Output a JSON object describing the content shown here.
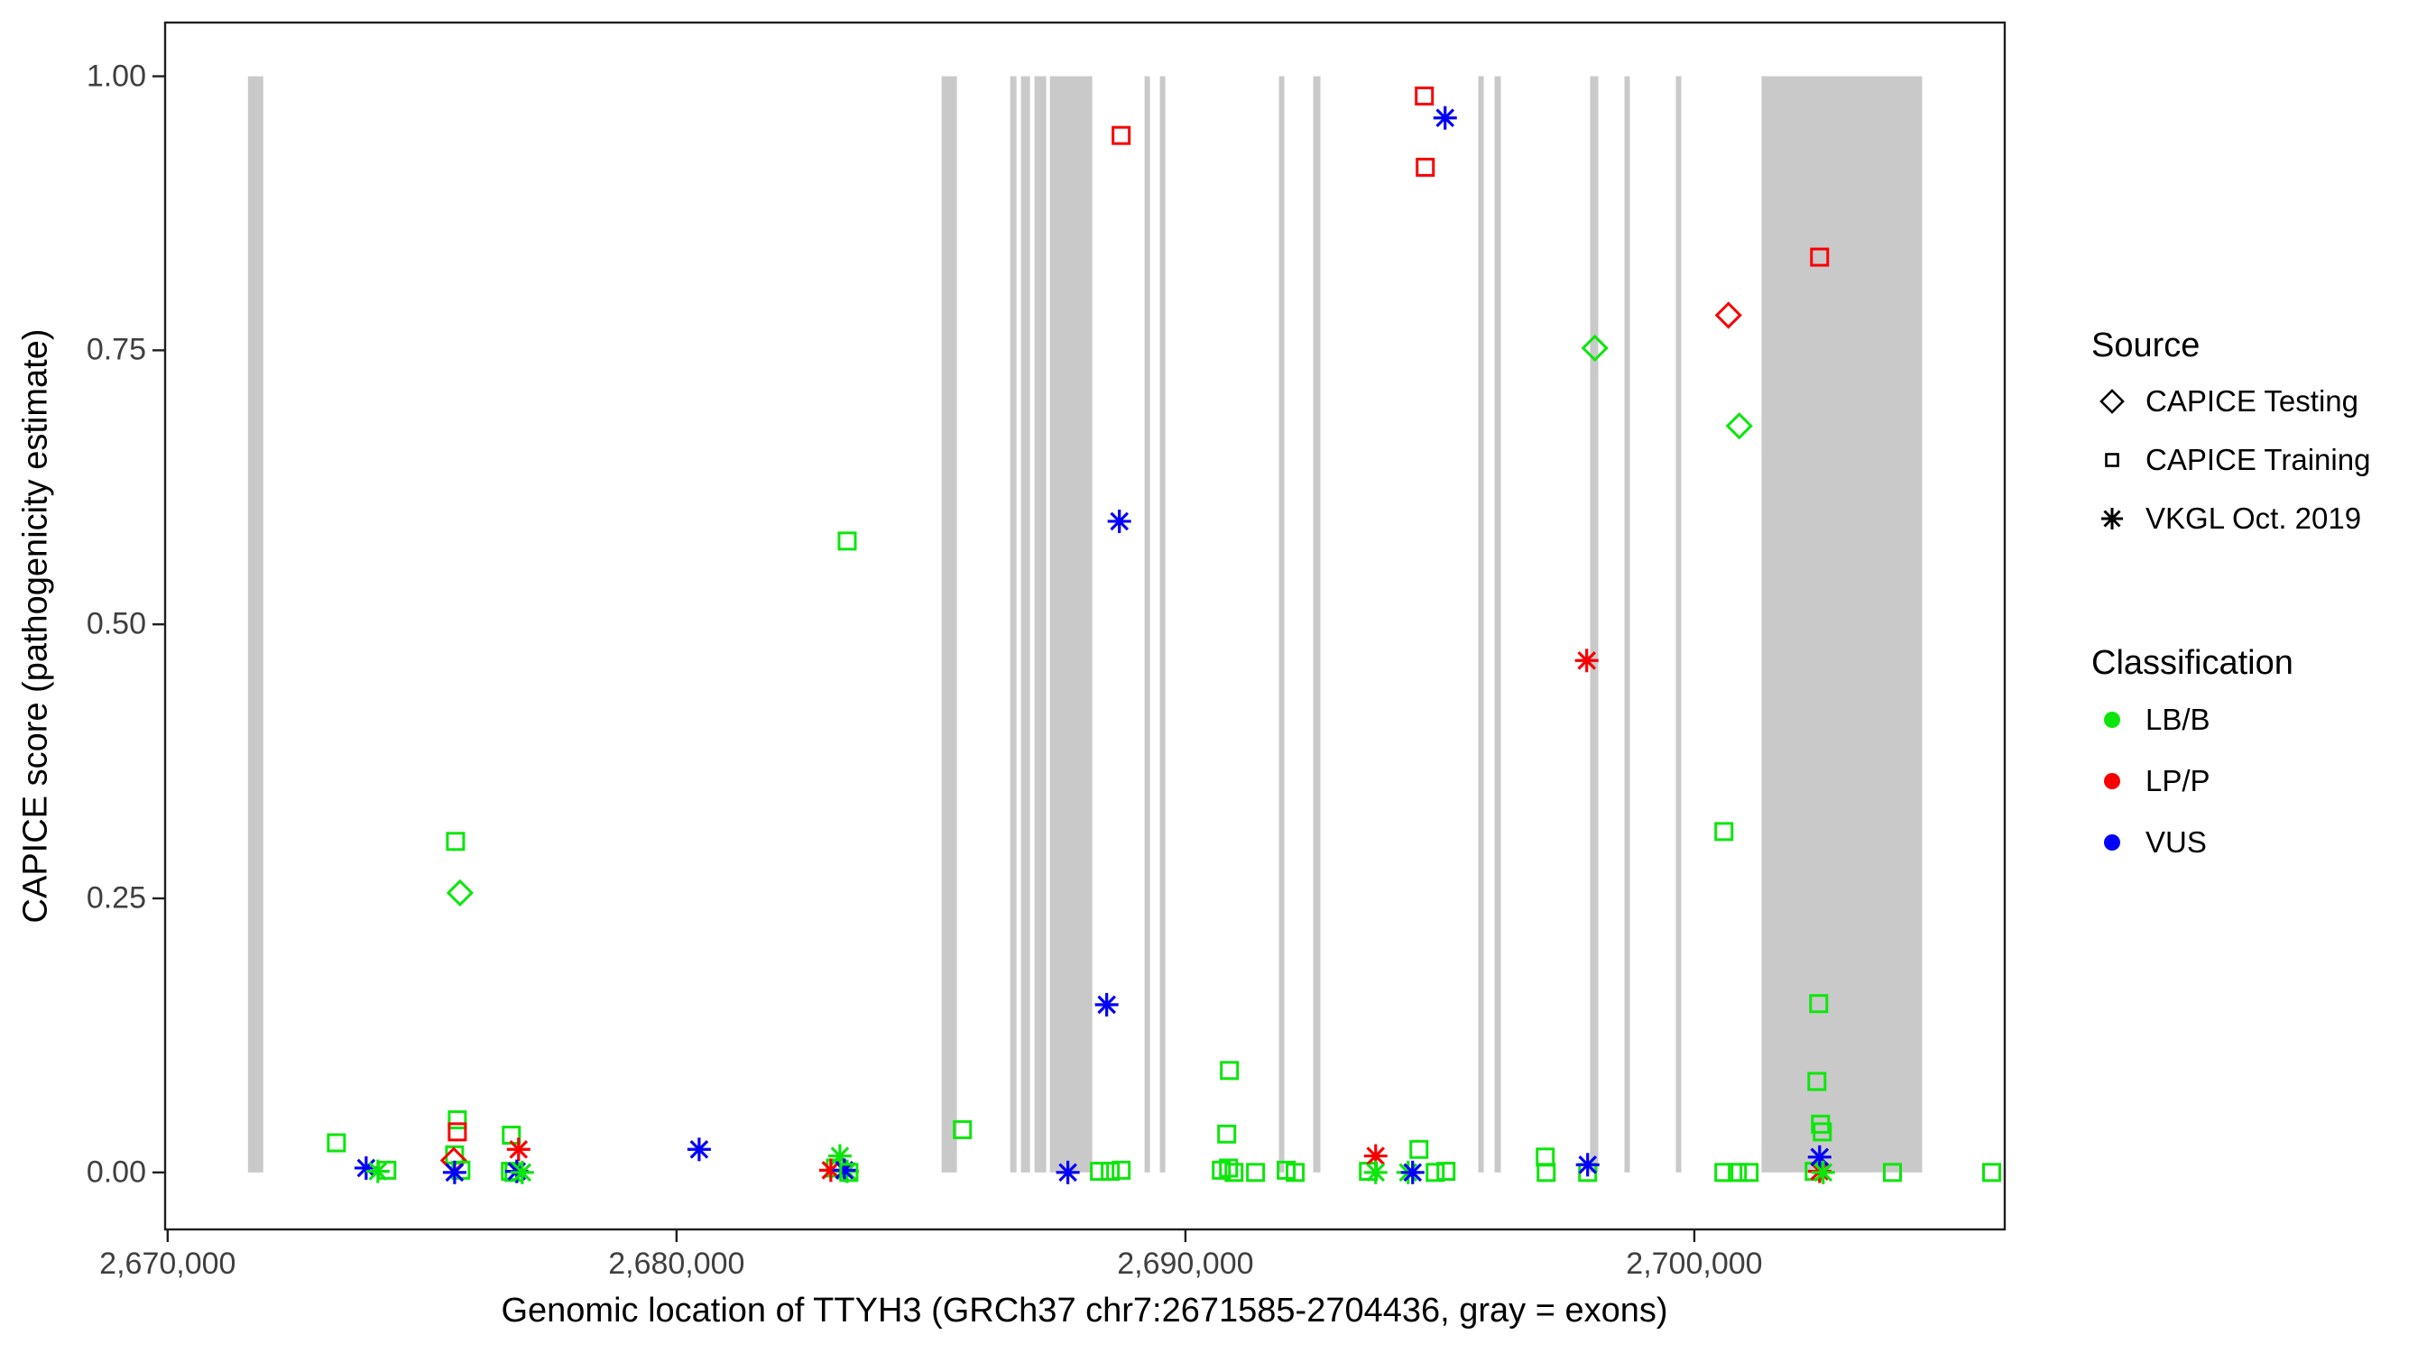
{
  "colors": {
    "LB/B": "#0ce60c",
    "LP/P": "#f80000",
    "VUS": "#0000f8",
    "exon": "#c9c9c9",
    "axis": "#1f1f1f",
    "tick_label": "#3f3f3f"
  },
  "legend": {
    "source_title": "Source",
    "source_items": [
      {
        "shape": "diamond",
        "label": "CAPICE Testing"
      },
      {
        "shape": "square",
        "label": "CAPICE Training"
      },
      {
        "shape": "asterisk",
        "label": "VKGL Oct. 2019"
      }
    ],
    "classification_title": "Classification",
    "classification_items": [
      {
        "class": "LB/B",
        "label": "LB/B"
      },
      {
        "class": "LP/P",
        "label": "LP/P"
      },
      {
        "class": "VUS",
        "label": "VUS"
      }
    ]
  },
  "chart_data": {
    "type": "scatter",
    "title": "",
    "xlabel": "Genomic location of TTYH3 (GRCh37 chr7:2671585-2704436, gray = exons)",
    "ylabel": "CAPICE score (pathogenicity estimate)",
    "xlim": [
      2669950,
      2706100
    ],
    "ylim": [
      -0.052,
      1.049
    ],
    "grid": false,
    "legend_position": "right",
    "shape_by_source": {
      "CAPICE Testing": "diamond",
      "CAPICE Training": "square",
      "VKGL Oct. 2019": "asterisk"
    },
    "x_ticks": [
      {
        "value": 2670000,
        "label": "2,670,000"
      },
      {
        "value": 2680000,
        "label": "2,680,000"
      },
      {
        "value": 2690000,
        "label": "2,690,000"
      },
      {
        "value": 2700000,
        "label": "2,700,000"
      }
    ],
    "y_ticks": [
      {
        "value": 0.0,
        "label": "0.00"
      },
      {
        "value": 0.25,
        "label": "0.25"
      },
      {
        "value": 0.5,
        "label": "0.50"
      },
      {
        "value": 0.75,
        "label": "0.75"
      },
      {
        "value": 1.0,
        "label": "1.00"
      }
    ],
    "exons": [
      [
        2671578,
        2671879
      ],
      [
        2685209,
        2685510
      ],
      [
        2686556,
        2686680
      ],
      [
        2686769,
        2686946
      ],
      [
        2687035,
        2687265
      ],
      [
        2687336,
        2688169
      ],
      [
        2689197,
        2689303
      ],
      [
        2689498,
        2689605
      ],
      [
        2691838,
        2691944
      ],
      [
        2692511,
        2692653
      ],
      [
        2695755,
        2695861
      ],
      [
        2696074,
        2696198
      ],
      [
        2697953,
        2698113
      ],
      [
        2698627,
        2698733
      ],
      [
        2699637,
        2699744
      ],
      [
        2701321,
        2704477
      ]
    ],
    "points": [
      {
        "x": 2673316,
        "y": 0.027,
        "source": "CAPICE Training",
        "class": "LB/B"
      },
      {
        "x": 2673901,
        "y": 0.004,
        "source": "VKGL Oct. 2019",
        "class": "VUS"
      },
      {
        "x": 2674131,
        "y": 0.001,
        "source": "VKGL Oct. 2019",
        "class": "LB/B"
      },
      {
        "x": 2674308,
        "y": 0.002,
        "source": "CAPICE Training",
        "class": "LB/B"
      },
      {
        "x": 2675692,
        "y": 0.048,
        "source": "CAPICE Training",
        "class": "LB/B"
      },
      {
        "x": 2675692,
        "y": 0.037,
        "source": "CAPICE Training",
        "class": "LP/P"
      },
      {
        "x": 2675639,
        "y": 0.016,
        "source": "CAPICE Training",
        "class": "LB/B"
      },
      {
        "x": 2675621,
        "y": 0.011,
        "source": "CAPICE Testing",
        "class": "LP/P"
      },
      {
        "x": 2675763,
        "y": 0.002,
        "source": "CAPICE Training",
        "class": "LB/B"
      },
      {
        "x": 2675639,
        "y": 0.0,
        "source": "VKGL Oct. 2019",
        "class": "VUS"
      },
      {
        "x": 2675657,
        "y": 0.302,
        "source": "CAPICE Training",
        "class": "LB/B"
      },
      {
        "x": 2675745,
        "y": 0.255,
        "source": "CAPICE Testing",
        "class": "LB/B"
      },
      {
        "x": 2676754,
        "y": 0.034,
        "source": "CAPICE Training",
        "class": "LB/B"
      },
      {
        "x": 2676896,
        "y": 0.021,
        "source": "VKGL Oct. 2019",
        "class": "LP/P"
      },
      {
        "x": 2676736,
        "y": 0.001,
        "source": "CAPICE Training",
        "class": "LB/B"
      },
      {
        "x": 2676807,
        "y": 0.0,
        "source": "CAPICE Training",
        "class": "LB/B"
      },
      {
        "x": 2676860,
        "y": 0.001,
        "source": "VKGL Oct. 2019",
        "class": "VUS"
      },
      {
        "x": 2676967,
        "y": 0.0,
        "source": "VKGL Oct. 2019",
        "class": "LB/B"
      },
      {
        "x": 2680444,
        "y": 0.021,
        "source": "VKGL Oct. 2019",
        "class": "VUS"
      },
      {
        "x": 2683121,
        "y": 0.004,
        "source": "CAPICE Training",
        "class": "LB/B"
      },
      {
        "x": 2683210,
        "y": 0.015,
        "source": "VKGL Oct. 2019",
        "class": "LB/B"
      },
      {
        "x": 2683032,
        "y": 0.002,
        "source": "VKGL Oct. 2019",
        "class": "LP/P"
      },
      {
        "x": 2683352,
        "y": 0.001,
        "source": "VKGL Oct. 2019",
        "class": "LB/B"
      },
      {
        "x": 2683298,
        "y": 0.002,
        "source": "VKGL Oct. 2019",
        "class": "VUS"
      },
      {
        "x": 2683387,
        "y": 0.0,
        "source": "CAPICE Training",
        "class": "LB/B"
      },
      {
        "x": 2683353,
        "y": 0.576,
        "source": "CAPICE Training",
        "class": "LB/B"
      },
      {
        "x": 2685618,
        "y": 0.039,
        "source": "CAPICE Training",
        "class": "LB/B"
      },
      {
        "x": 2687690,
        "y": 0.0,
        "source": "VKGL Oct. 2019",
        "class": "VUS"
      },
      {
        "x": 2688311,
        "y": 0.001,
        "source": "CAPICE Training",
        "class": "LB/B"
      },
      {
        "x": 2688524,
        "y": 0.001,
        "source": "CAPICE Training",
        "class": "LB/B"
      },
      {
        "x": 2688737,
        "y": 0.002,
        "source": "CAPICE Training",
        "class": "LB/B"
      },
      {
        "x": 2688737,
        "y": 0.946,
        "source": "CAPICE Training",
        "class": "LP/P"
      },
      {
        "x": 2688702,
        "y": 0.594,
        "source": "VKGL Oct. 2019",
        "class": "VUS"
      },
      {
        "x": 2688453,
        "y": 0.153,
        "source": "VKGL Oct. 2019",
        "class": "VUS"
      },
      {
        "x": 2690812,
        "y": 0.035,
        "source": "CAPICE Training",
        "class": "LB/B"
      },
      {
        "x": 2690865,
        "y": 0.093,
        "source": "CAPICE Training",
        "class": "LB/B"
      },
      {
        "x": 2690706,
        "y": 0.002,
        "source": "CAPICE Training",
        "class": "LB/B"
      },
      {
        "x": 2690848,
        "y": 0.004,
        "source": "CAPICE Training",
        "class": "LB/B"
      },
      {
        "x": 2690954,
        "y": 0.0,
        "source": "CAPICE Training",
        "class": "LB/B"
      },
      {
        "x": 2691378,
        "y": 0.0,
        "source": "CAPICE Training",
        "class": "LB/B"
      },
      {
        "x": 2691980,
        "y": 0.002,
        "source": "CAPICE Training",
        "class": "LB/B"
      },
      {
        "x": 2692157,
        "y": 0.0,
        "source": "CAPICE Training",
        "class": "LB/B"
      },
      {
        "x": 2693596,
        "y": 0.001,
        "source": "CAPICE Training",
        "class": "LB/B"
      },
      {
        "x": 2693738,
        "y": 0.015,
        "source": "VKGL Oct. 2019",
        "class": "LP/P"
      },
      {
        "x": 2693738,
        "y": 0.0,
        "source": "VKGL Oct. 2019",
        "class": "LB/B"
      },
      {
        "x": 2694589,
        "y": 0.021,
        "source": "CAPICE Training",
        "class": "LB/B"
      },
      {
        "x": 2694376,
        "y": 0.0,
        "source": "VKGL Oct. 2019",
        "class": "LB/B"
      },
      {
        "x": 2694465,
        "y": 0.0,
        "source": "VKGL Oct. 2019",
        "class": "VUS"
      },
      {
        "x": 2694908,
        "y": 0.0,
        "source": "CAPICE Training",
        "class": "LB/B"
      },
      {
        "x": 2695121,
        "y": 0.001,
        "source": "CAPICE Training",
        "class": "LB/B"
      },
      {
        "x": 2694695,
        "y": 0.982,
        "source": "CAPICE Training",
        "class": "LP/P"
      },
      {
        "x": 2694713,
        "y": 0.917,
        "source": "CAPICE Training",
        "class": "LP/P"
      },
      {
        "x": 2695103,
        "y": 0.962,
        "source": "VKGL Oct. 2019",
        "class": "VUS"
      },
      {
        "x": 2697071,
        "y": 0.014,
        "source": "CAPICE Training",
        "class": "LB/B"
      },
      {
        "x": 2697089,
        "y": 0.0,
        "source": "CAPICE Training",
        "class": "LB/B"
      },
      {
        "x": 2697904,
        "y": 0.0,
        "source": "CAPICE Training",
        "class": "LB/B"
      },
      {
        "x": 2697904,
        "y": 0.007,
        "source": "VKGL Oct. 2019",
        "class": "VUS"
      },
      {
        "x": 2697886,
        "y": 0.467,
        "source": "VKGL Oct. 2019",
        "class": "LP/P"
      },
      {
        "x": 2698046,
        "y": 0.752,
        "source": "CAPICE Testing",
        "class": "LB/B"
      },
      {
        "x": 2700670,
        "y": 0.782,
        "source": "CAPICE Testing",
        "class": "LP/P"
      },
      {
        "x": 2700883,
        "y": 0.681,
        "source": "CAPICE Testing",
        "class": "LB/B"
      },
      {
        "x": 2702462,
        "y": 0.835,
        "source": "CAPICE Training",
        "class": "LP/P"
      },
      {
        "x": 2700581,
        "y": 0.311,
        "source": "CAPICE Training",
        "class": "LB/B"
      },
      {
        "x": 2700581,
        "y": 0.0,
        "source": "CAPICE Training",
        "class": "LB/B"
      },
      {
        "x": 2700847,
        "y": 0.0,
        "source": "CAPICE Training",
        "class": "LB/B"
      },
      {
        "x": 2701077,
        "y": 0.0,
        "source": "CAPICE Training",
        "class": "LB/B"
      },
      {
        "x": 2702444,
        "y": 0.154,
        "source": "CAPICE Training",
        "class": "LB/B"
      },
      {
        "x": 2702409,
        "y": 0.083,
        "source": "CAPICE Training",
        "class": "LB/B"
      },
      {
        "x": 2702480,
        "y": 0.044,
        "source": "CAPICE Training",
        "class": "LB/B"
      },
      {
        "x": 2702515,
        "y": 0.037,
        "source": "CAPICE Training",
        "class": "LB/B"
      },
      {
        "x": 2702356,
        "y": 0.001,
        "source": "CAPICE Training",
        "class": "LB/B"
      },
      {
        "x": 2702462,
        "y": 0.001,
        "source": "VKGL Oct. 2019",
        "class": "LP/P"
      },
      {
        "x": 2702462,
        "y": 0.014,
        "source": "VKGL Oct. 2019",
        "class": "VUS"
      },
      {
        "x": 2702533,
        "y": 0.0,
        "source": "VKGL Oct. 2019",
        "class": "LB/B"
      },
      {
        "x": 2703893,
        "y": 0.0,
        "source": "CAPICE Training",
        "class": "LB/B"
      },
      {
        "x": 2705843,
        "y": 0.0,
        "source": "CAPICE Training",
        "class": "LB/B"
      }
    ]
  }
}
